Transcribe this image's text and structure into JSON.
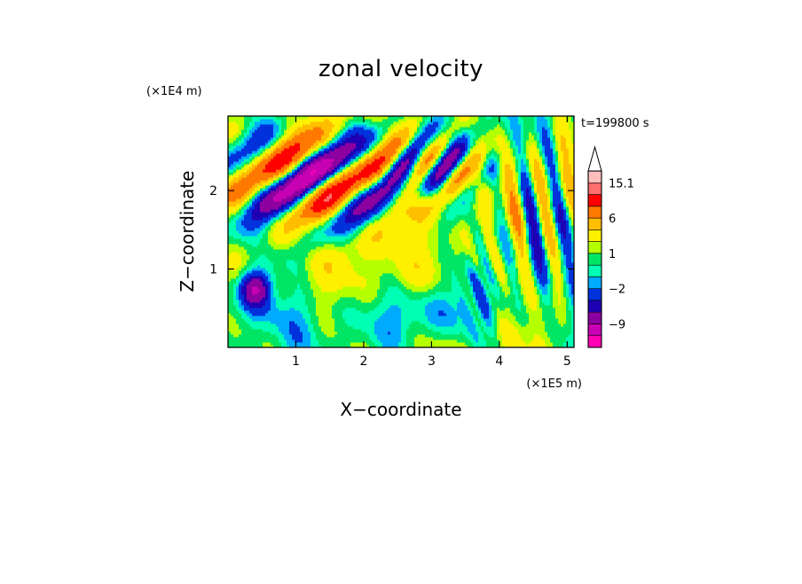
{
  "chart_data": {
    "type": "heatmap",
    "title": "zonal velocity",
    "xlabel": "X−coordinate",
    "ylabel": "Z−coordinate",
    "x_unit": "(×1E5 m)",
    "y_unit": "(×1E4 m)",
    "time_label": "t=199800 s",
    "xlim": [
      0,
      5.1
    ],
    "ylim": [
      0,
      2.95
    ],
    "x_ticks": [
      {
        "value": 1,
        "label": "1"
      },
      {
        "value": 2,
        "label": "2"
      },
      {
        "value": 3,
        "label": "3"
      },
      {
        "value": 4,
        "label": "4"
      },
      {
        "value": 5,
        "label": "5"
      }
    ],
    "y_ticks": [
      {
        "value": 1,
        "label": "1"
      },
      {
        "value": 2,
        "label": "2"
      }
    ],
    "colorbar": {
      "levels": [
        -15,
        -12,
        -9,
        -6,
        -4,
        -2,
        -1,
        0,
        1,
        2,
        4,
        6,
        9,
        12,
        15.1
      ],
      "colors": [
        "#ff00b4",
        "#c800b4",
        "#8c00a0",
        "#1e00b4",
        "#0032dc",
        "#00aaff",
        "#00ffb4",
        "#00e664",
        "#b4ff00",
        "#fff000",
        "#ffbe00",
        "#ff7800",
        "#ff0000",
        "#ff6e6e",
        "#ffbebe"
      ],
      "extend_top_color": "#ffffff",
      "labels": [
        {
          "value": 15.1,
          "label": "15.1"
        },
        {
          "value": 6,
          "label": "6"
        },
        {
          "value": 1,
          "label": "1"
        },
        {
          "value": -2,
          "label": "−2"
        },
        {
          "value": -9,
          "label": "−9"
        }
      ]
    }
  }
}
